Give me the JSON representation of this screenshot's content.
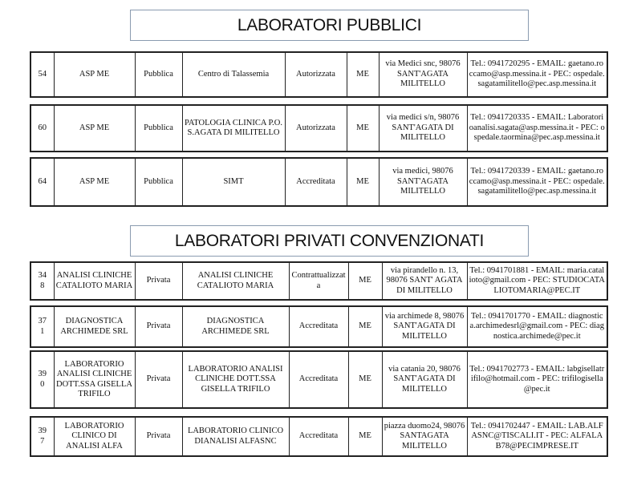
{
  "public_title": "LABORATORI PUBBLICI",
  "private_title": "LABORATORI PRIVATI CONVENZIONATI",
  "public_rows": [
    {
      "id": "54",
      "ente": "ASP ME",
      "tipo": "Pubblica",
      "nome": "Centro di Talassemia",
      "stato": "Autorizzata",
      "prov": "ME",
      "indirizzo": "via Medici snc, 98076 SANT'AGATA MILITELLO",
      "contatti": "Tel.: 0941720295 - EMAIL: gaetano.roccamo@asp.messina.it - PEC: ospedale.sagatamilitello@pec.asp.messina.it"
    },
    {
      "id": "60",
      "ente": "ASP ME",
      "tipo": "Pubblica",
      "nome": "PATOLOGIA CLINICA P.O. S.AGATA DI MILITELLO",
      "stato": "Autorizzata",
      "prov": "ME",
      "indirizzo": "via medici s/n, 98076 SANT'AGATA DI MILITELLO",
      "contatti": "Tel.: 0941720335 - EMAIL: Laboratorioanalisi.sagata@asp.messina.it - PEC: ospedale.taormina@pec.asp.messina.it"
    },
    {
      "id": "64",
      "ente": "ASP ME",
      "tipo": "Pubblica",
      "nome": "SIMT",
      "stato": "Accreditata",
      "prov": "ME",
      "indirizzo": "via medici, 98076 SANT'AGATA MILITELLO",
      "contatti": "Tel.: 0941720339 - EMAIL: gaetano.roccamo@asp.messina.it - PEC: ospedale.sagatamilitello@pec.asp.messina.it"
    }
  ],
  "private_rows": [
    {
      "id": "348",
      "ente": "ANALISI CLINICHE CATALIOTO MARIA",
      "tipo": "Privata",
      "nome": "ANALISI CLINICHE CATALIOTO MARIA",
      "stato": "Contrattualizzata",
      "prov": "ME",
      "indirizzo": "via pirandello n. 13, 98076 SANT' AGATA DI MILITELLO",
      "contatti": "Tel.: 0941701881 - EMAIL: maria.catalioto@gmail.com - PEC: STUDIOCATALIOTOMARIA@PEC.IT"
    },
    {
      "id": "371",
      "ente": "DIAGNOSTICA ARCHIMEDE SRL",
      "tipo": "Privata",
      "nome": "DIAGNOSTICA ARCHIMEDE SRL",
      "stato": "Accreditata",
      "prov": "ME",
      "indirizzo": "via archimede 8, 98076 SANT'AGATA DI MILITELLO",
      "contatti": "Tel.: 0941701770 - EMAIL: diagnostica.archimedesrl@gmail.com - PEC: diagnostica.archimede@pec.it"
    },
    {
      "id": "390",
      "ente": "LABORATORIO ANALISI CLINICHE DOTT.SSA GISELLA TRIFILO",
      "tipo": "Privata",
      "nome": "LABORATORIO ANALISI CLINICHE DOTT.SSA GISELLA TRIFILO",
      "stato": "Accreditata",
      "prov": "ME",
      "indirizzo": "via catania 20, 98076 SANT'AGATA DI MILITELLO",
      "contatti": "Tel.: 0941702773 - EMAIL: labgisellatrifilo@hotmail.com - PEC: trifilogisella@pec.it"
    },
    {
      "id": "397",
      "ente": "LABORATORIO CLINICO DI ANALISI ALFA",
      "tipo": "Privata",
      "nome": "LABORATORIO CLINICO DIANALISI ALFASNC",
      "stato": "Accreditata",
      "prov": "ME",
      "indirizzo": "piazza duomo24, 98076 SANTAGATA MILITELLO",
      "contatti": "Tel.: 0941702447 - EMAIL: LAB.ALFASNC@TISCALI.IT - PEC: ALFALAB78@PECIMPRESE.IT"
    }
  ]
}
